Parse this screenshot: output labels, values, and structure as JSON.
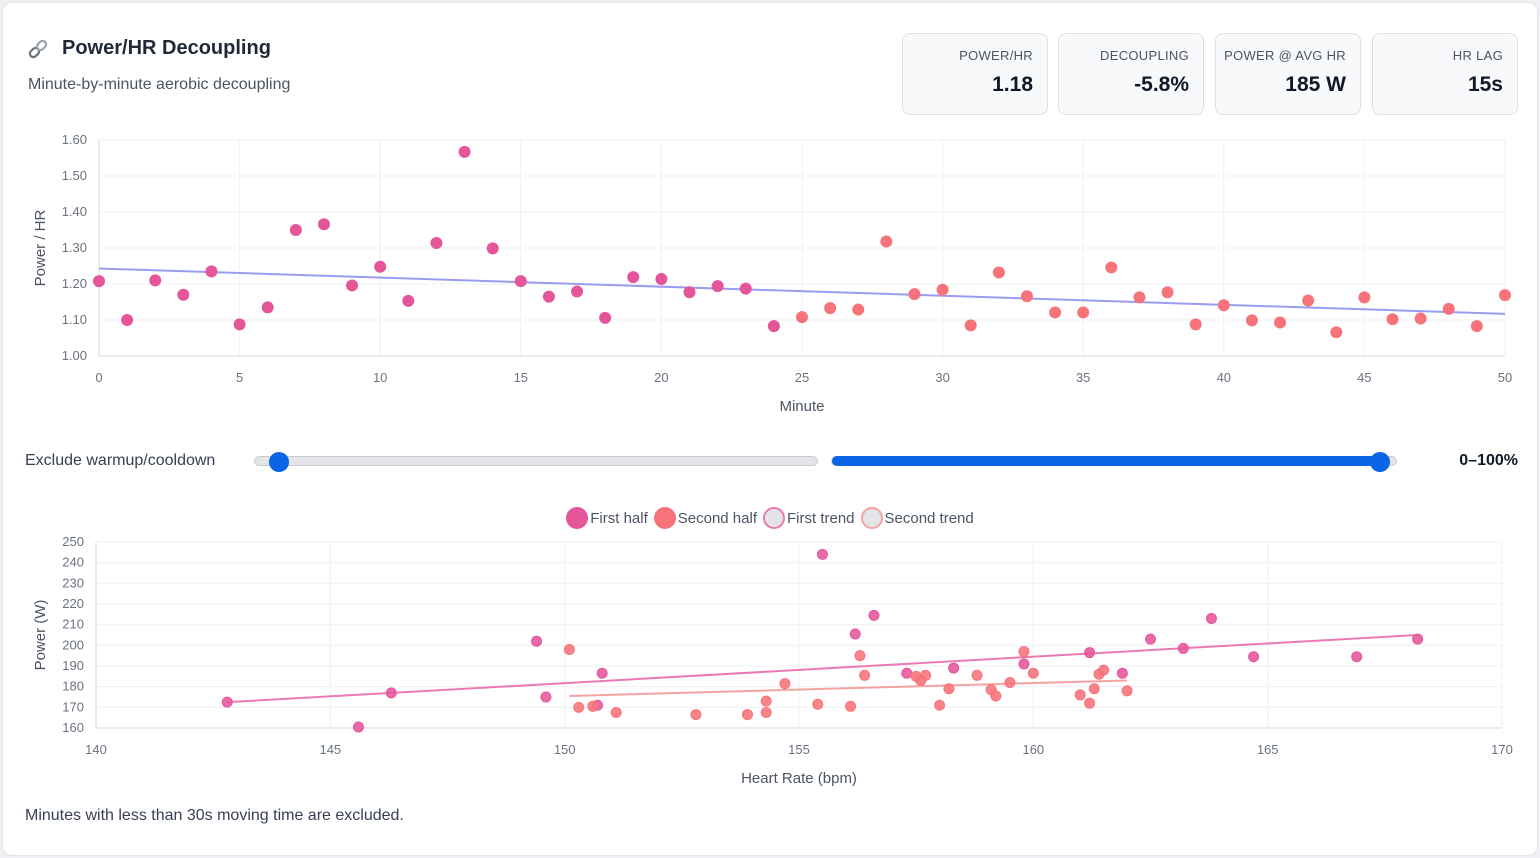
{
  "header": {
    "icon": "link-icon",
    "title": "Power/HR Decoupling",
    "subtitle": "Minute-by-minute aerobic decoupling"
  },
  "stats": [
    {
      "label": "POWER/HR",
      "value": "1.18"
    },
    {
      "label": "DECOUPLING",
      "value": "-5.8%"
    },
    {
      "label": "POWER @ AVG HR",
      "value": "185 W"
    },
    {
      "label": "HR LAG",
      "value": "15s"
    }
  ],
  "slider": {
    "label": "Exclude warmup/cooldown",
    "range_text": "0–100%",
    "low_fraction": 0.0,
    "high_fraction": 1.0
  },
  "footnote": "Minutes with less than 30s moving time are excluded.",
  "colors": {
    "first": "#e5559a",
    "second": "#f7737a",
    "trend_line": "#9a9cf0",
    "first_trend": "#e97ab3",
    "second_trend": "#f3a4a0",
    "accent": "#0a64e6"
  },
  "chart_data": [
    {
      "type": "scatter",
      "title": "",
      "xlabel": "Minute",
      "ylabel": "Power / HR",
      "xlim": [
        0,
        50
      ],
      "ylim": [
        1.0,
        1.6
      ],
      "xticks": [
        0,
        5,
        10,
        15,
        20,
        25,
        30,
        35,
        40,
        45,
        50
      ],
      "yticks": [
        "1.00",
        "1.10",
        "1.20",
        "1.30",
        "1.40",
        "1.50",
        "1.60"
      ],
      "trend": {
        "start": [
          0,
          1.243
        ],
        "end": [
          50,
          1.117
        ]
      },
      "series": [
        {
          "name": "First half",
          "x": [
            0,
            1,
            2,
            3,
            4,
            5,
            6,
            7,
            8,
            9,
            10,
            11,
            12,
            13,
            14,
            15,
            16,
            17,
            18,
            19,
            20,
            21,
            22,
            23,
            24
          ],
          "y": [
            1.208,
            1.1,
            1.21,
            1.17,
            1.235,
            1.088,
            1.135,
            1.35,
            1.366,
            1.196,
            1.248,
            1.153,
            1.314,
            1.567,
            1.299,
            1.208,
            1.165,
            1.179,
            1.106,
            1.219,
            1.214,
            1.177,
            1.194,
            1.187,
            1.083
          ]
        },
        {
          "name": "Second half",
          "x": [
            25,
            26,
            27,
            28,
            29,
            30,
            31,
            32,
            33,
            34,
            35,
            36,
            37,
            38,
            39,
            40,
            41,
            42,
            43,
            44,
            45,
            46,
            47,
            48,
            49,
            50
          ],
          "y": [
            1.108,
            1.133,
            1.129,
            1.318,
            1.172,
            1.184,
            1.085,
            1.232,
            1.166,
            1.121,
            1.121,
            1.246,
            1.163,
            1.177,
            1.088,
            1.141,
            1.099,
            1.093,
            1.154,
            1.066,
            1.163,
            1.102,
            1.104,
            1.131,
            1.083,
            1.169
          ]
        }
      ]
    },
    {
      "type": "scatter",
      "title": "",
      "xlabel": "Heart Rate (bpm)",
      "ylabel": "Power (W)",
      "xlim": [
        140,
        170
      ],
      "ylim": [
        160,
        250
      ],
      "xticks": [
        140,
        145,
        150,
        155,
        160,
        165,
        170
      ],
      "yticks": [
        160,
        170,
        180,
        190,
        200,
        210,
        220,
        230,
        240,
        250
      ],
      "legend": [
        "First half",
        "Second half",
        "First trend",
        "Second trend"
      ],
      "trends": [
        {
          "name": "First trend",
          "start": [
            142.8,
            172.5
          ],
          "end": [
            168.2,
            205
          ]
        },
        {
          "name": "Second trend",
          "start": [
            150.1,
            175.5
          ],
          "end": [
            162.0,
            183
          ]
        }
      ],
      "series": [
        {
          "name": "First half",
          "x": [
            142.8,
            146.3,
            145.6,
            149.4,
            149.6,
            150.8,
            150.7,
            155.5,
            156.2,
            156.6,
            157.3,
            158.3,
            159.8,
            161.2,
            161.9,
            162.5,
            163.2,
            163.8,
            164.7,
            166.9,
            168.2
          ],
          "y": [
            172.5,
            177,
            160.5,
            202,
            175,
            186.5,
            171,
            244,
            205.5,
            214.5,
            186.5,
            189,
            191,
            196.5,
            186.5,
            203,
            198.5,
            213,
            194.5,
            194.5,
            203
          ]
        },
        {
          "name": "Second half",
          "x": [
            150.1,
            150.3,
            150.6,
            151.1,
            152.8,
            153.9,
            154.3,
            154.3,
            154.7,
            155.4,
            156.1,
            156.3,
            156.4,
            157.5,
            157.6,
            157.7,
            158.0,
            158.2,
            158.8,
            159.1,
            159.2,
            159.5,
            159.8,
            160.0,
            161.0,
            161.2,
            161.3,
            161.4,
            161.5,
            162.0
          ],
          "y": [
            198,
            170,
            170.5,
            167.5,
            166.5,
            166.5,
            173,
            167.5,
            181.5,
            171.5,
            170.5,
            195,
            185.5,
            185,
            183,
            185.5,
            171,
            179,
            185.5,
            178.5,
            175.5,
            182,
            197,
            186.5,
            176,
            172,
            179,
            186,
            188,
            178
          ]
        }
      ]
    }
  ]
}
